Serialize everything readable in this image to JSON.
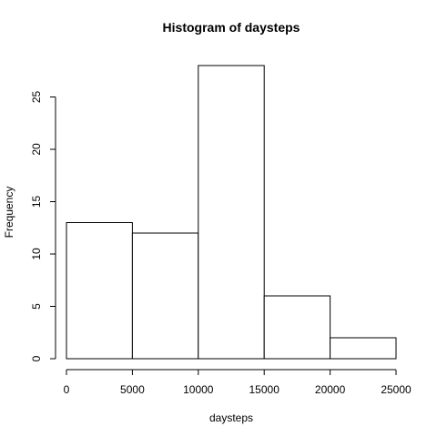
{
  "chart_data": {
    "type": "bar",
    "title": "Histogram of daysteps",
    "xlabel": "daysteps",
    "ylabel": "Frequency",
    "bins": [
      {
        "start": 0,
        "end": 5000,
        "count": 13
      },
      {
        "start": 5000,
        "end": 10000,
        "count": 12
      },
      {
        "start": 10000,
        "end": 15000,
        "count": 28
      },
      {
        "start": 15000,
        "end": 20000,
        "count": 6
      },
      {
        "start": 20000,
        "end": 25000,
        "count": 2
      }
    ],
    "xlim": [
      0,
      25000
    ],
    "ylim": [
      0,
      28
    ],
    "xticks": [
      0,
      5000,
      10000,
      15000,
      20000,
      25000
    ],
    "xtick_labels": [
      "0",
      "5000",
      "10000",
      "15000",
      "20000",
      "25000"
    ],
    "yticks": [
      0,
      5,
      10,
      15,
      20,
      25
    ],
    "ytick_labels": [
      "0",
      "5",
      "10",
      "15",
      "20",
      "25"
    ],
    "grid": false,
    "legend": "none"
  }
}
